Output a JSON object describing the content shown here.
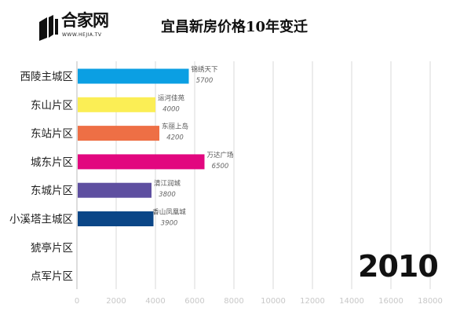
{
  "header": {
    "logo_text": "合家网",
    "logo_sub": "WWW.HEJIA.TV",
    "title": "宜昌新房价格10年变迁"
  },
  "year_label": "2010",
  "chart_data": {
    "type": "bar",
    "orientation": "horizontal",
    "title": "宜昌新房价格10年变迁",
    "categories": [
      "西陵主城区",
      "东山片区",
      "东站片区",
      "城东片区",
      "东城片区",
      "小溪塔主城区",
      "猇亭片区",
      "点军片区"
    ],
    "values": [
      5700,
      4000,
      4200,
      6500,
      3800,
      3900,
      null,
      null
    ],
    "bar_labels": [
      "锦绣天下",
      "运河佳苑",
      "东丽上岛",
      "万达广场",
      "清江润城",
      "香山凤凰城",
      "",
      ""
    ],
    "colors": [
      "#0b9fe3",
      "#fbee55",
      "#ee6f45",
      "#e2077f",
      "#5e4fa0",
      "#0b4687",
      "#888888",
      "#888888"
    ],
    "xlim": [
      0,
      18000
    ],
    "xticks": [
      0,
      2000,
      4000,
      6000,
      8000,
      10000,
      12000,
      14000,
      16000,
      18000
    ],
    "grid": true,
    "legend": "none"
  }
}
